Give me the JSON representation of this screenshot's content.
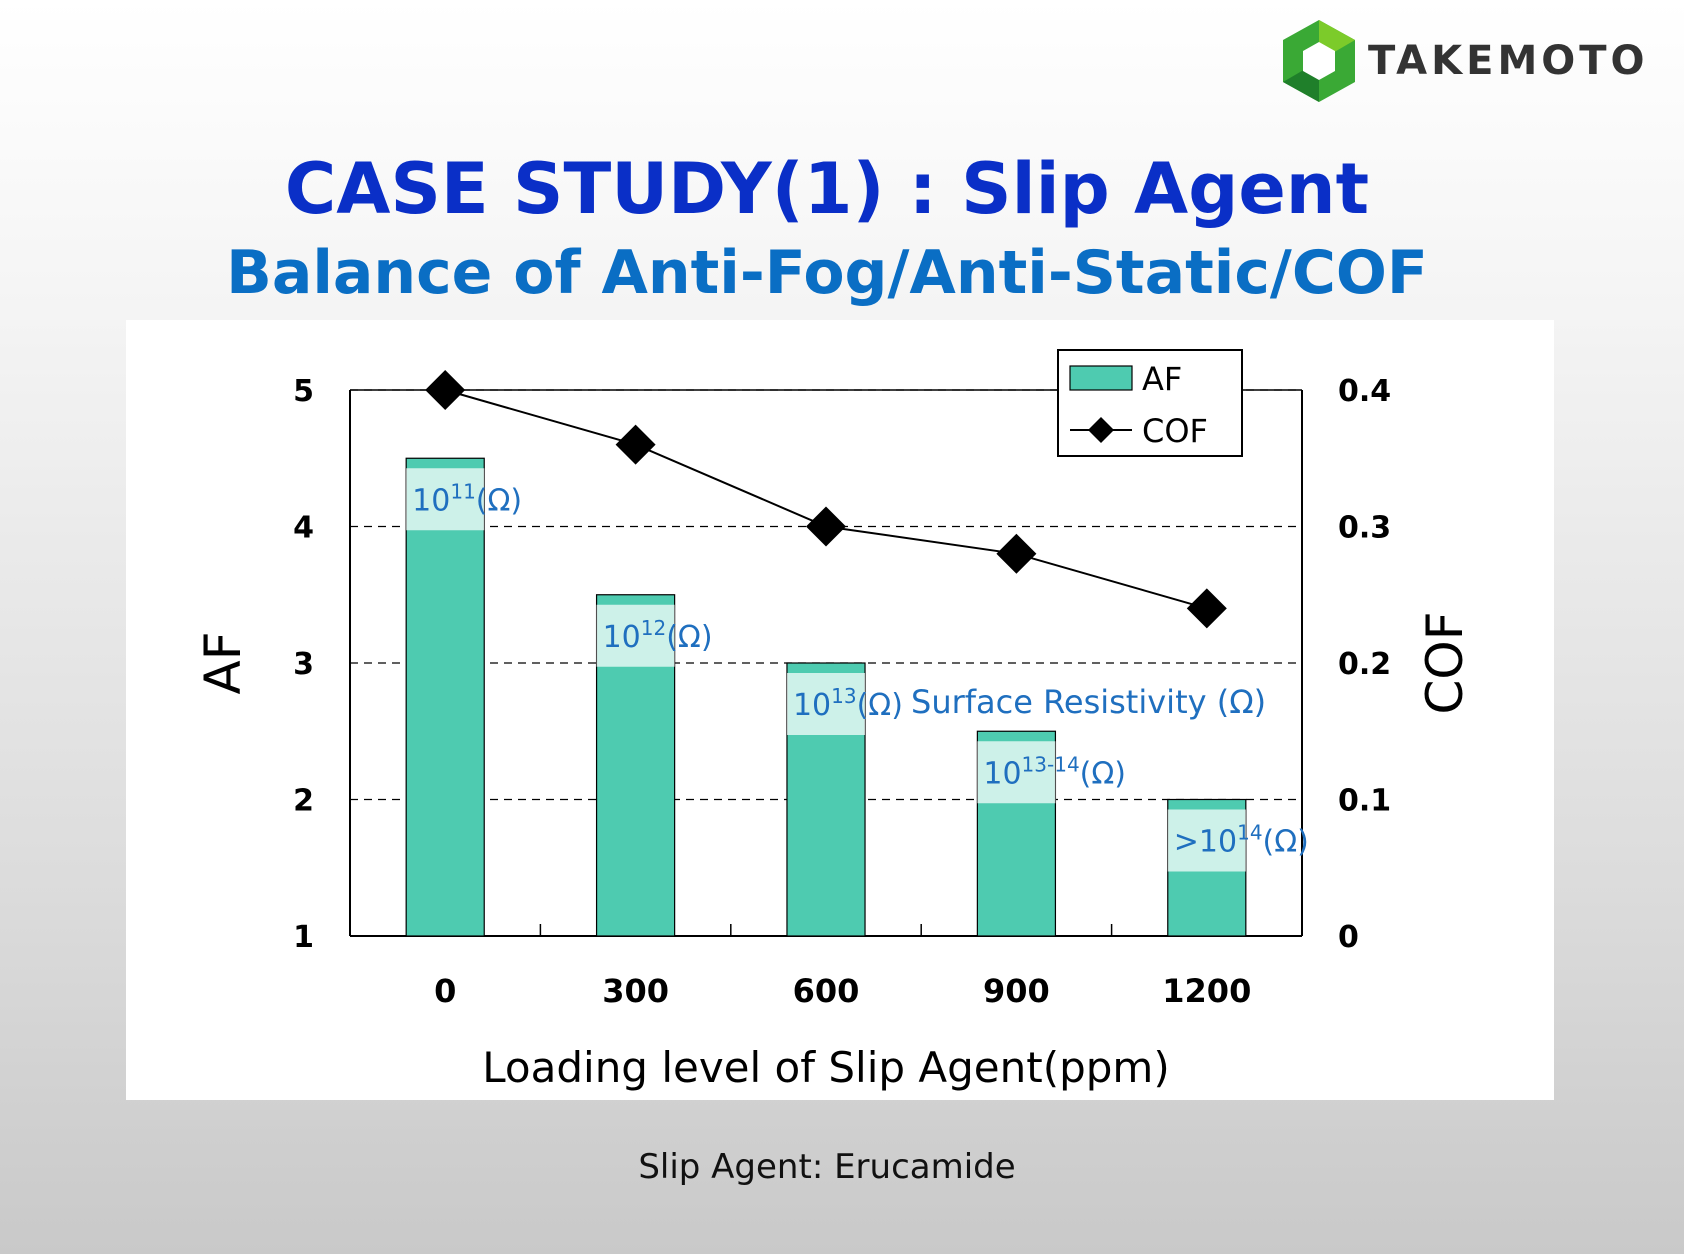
{
  "logo": {
    "text": "TAKEMOTO"
  },
  "title": {
    "main": "CASE STUDY(1) : Slip Agent",
    "subtitle": "Balance of Anti-Fog/Anti-Static/COF"
  },
  "footnote": "Slip Agent: Erucamide",
  "chart_data": {
    "type": "bar",
    "categories": [
      "0",
      "300",
      "600",
      "900",
      "1200"
    ],
    "xlabel": "Loading level of Slip Agent(ppm)",
    "series": [
      {
        "name": "AF",
        "axis": "left",
        "kind": "bar",
        "color": "#4ecbb0",
        "values": [
          4.5,
          3.5,
          3.0,
          2.5,
          2.0
        ]
      },
      {
        "name": "COF",
        "axis": "right",
        "kind": "line",
        "color": "#000000",
        "marker": "diamond",
        "values": [
          0.4,
          0.36,
          0.3,
          0.28,
          0.24
        ]
      }
    ],
    "y_left": {
      "label": "AF",
      "lim": [
        1,
        5
      ],
      "ticks": [
        "1",
        "2",
        "3",
        "4",
        "5"
      ]
    },
    "y_right": {
      "label": "COF",
      "lim": [
        0,
        0.4
      ],
      "ticks": [
        "0",
        "0.1",
        "0.2",
        "0.3",
        "0.4"
      ]
    },
    "grid": "dashed horizontal",
    "legend": {
      "placement": "top-right",
      "entries": [
        "AF",
        "COF"
      ]
    },
    "bar_annotations": [
      {
        "base": "10",
        "exp": "11",
        "prefix": "",
        "unit": "(Ω)"
      },
      {
        "base": "10",
        "exp": "12",
        "prefix": "",
        "unit": "(Ω)"
      },
      {
        "base": "10",
        "exp": "13",
        "prefix": "",
        "unit": "(Ω)"
      },
      {
        "base": "10",
        "exp": "13-14",
        "prefix": "",
        "unit": "(Ω)"
      },
      {
        "base": "10",
        "exp": "14",
        "prefix": ">",
        "unit": "(Ω)"
      }
    ],
    "annotation_label": "Surface Resistivity (Ω)",
    "annotation_color": "#1f6fbf"
  }
}
